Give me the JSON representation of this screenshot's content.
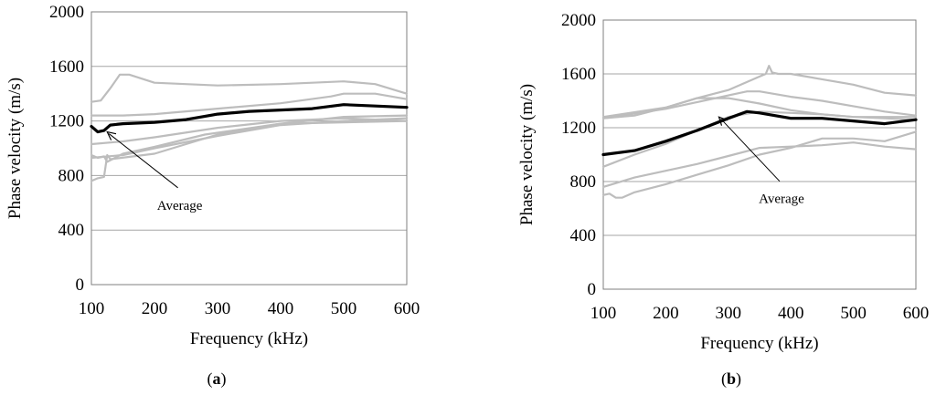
{
  "chart_data": [
    {
      "type": "line",
      "panel_label": "(a)",
      "panel_letter": "a",
      "xlabel": "Frequency (kHz)",
      "ylabel": "Phase velocity (m/s)",
      "xlim": [
        100,
        600
      ],
      "ylim": [
        0,
        2000
      ],
      "xticks": [
        100,
        200,
        300,
        400,
        500,
        600
      ],
      "yticks": [
        0,
        400,
        800,
        1200,
        1600,
        2000
      ],
      "grid": "horizontal",
      "annotation": {
        "text": "Average",
        "arrow_to": [
          125,
          1120
        ],
        "text_at": [
          240,
          590
        ]
      },
      "average_color": "#000000",
      "series_color": "#bdbdbd",
      "series": [
        {
          "x": [
            100,
            115,
            130,
            145,
            160,
            200,
            300,
            400,
            450,
            500,
            550,
            600
          ],
          "y": [
            1340,
            1350,
            1440,
            1540,
            1540,
            1480,
            1460,
            1470,
            1480,
            1490,
            1470,
            1400
          ]
        },
        {
          "x": [
            100,
            150,
            200,
            300,
            400,
            480,
            500,
            550,
            600
          ],
          "y": [
            1240,
            1240,
            1250,
            1290,
            1330,
            1380,
            1400,
            1400,
            1360
          ]
        },
        {
          "x": [
            100,
            150,
            200,
            300,
            400,
            500,
            600
          ],
          "y": [
            1030,
            1050,
            1080,
            1150,
            1200,
            1220,
            1200
          ]
        },
        {
          "x": [
            100,
            110,
            120,
            125,
            150,
            200,
            280,
            400,
            500,
            600
          ],
          "y": [
            950,
            930,
            940,
            900,
            960,
            1010,
            1100,
            1180,
            1230,
            1240
          ]
        },
        {
          "x": [
            100,
            110,
            120,
            125,
            130,
            200,
            300,
            400,
            500,
            600
          ],
          "y": [
            760,
            780,
            790,
            950,
            920,
            960,
            1100,
            1180,
            1190,
            1200
          ]
        },
        {
          "x": [
            100,
            150,
            200,
            300,
            400,
            500,
            600
          ],
          "y": [
            930,
            950,
            1000,
            1090,
            1170,
            1200,
            1220
          ]
        },
        {
          "name": "Average",
          "x": [
            100,
            110,
            120,
            130,
            150,
            200,
            250,
            300,
            350,
            400,
            450,
            500,
            550,
            600
          ],
          "y": [
            1160,
            1120,
            1130,
            1170,
            1180,
            1190,
            1210,
            1250,
            1270,
            1280,
            1290,
            1320,
            1310,
            1300
          ]
        }
      ]
    },
    {
      "type": "line",
      "panel_label": "(b)",
      "panel_letter": "b",
      "xlabel": "Frequency (kHz)",
      "ylabel": "Phase velocity (m/s)",
      "xlim": [
        100,
        600
      ],
      "ylim": [
        0,
        2000
      ],
      "xticks": [
        100,
        200,
        300,
        400,
        500,
        600
      ],
      "yticks": [
        0,
        400,
        800,
        1200,
        1600,
        2000
      ],
      "grid": "horizontal",
      "annotation": {
        "text": "Average",
        "arrow_to": [
          285,
          1280
        ],
        "text_at": [
          385,
          680
        ]
      },
      "average_color": "#000000",
      "series_color": "#bdbdbd",
      "series": [
        {
          "x": [
            100,
            150,
            200,
            250,
            300,
            350,
            360,
            365,
            370,
            380,
            400,
            450,
            500,
            550,
            600
          ],
          "y": [
            1270,
            1290,
            1350,
            1420,
            1480,
            1580,
            1600,
            1660,
            1610,
            1600,
            1600,
            1560,
            1520,
            1460,
            1440
          ]
        },
        {
          "x": [
            100,
            200,
            300,
            330,
            350,
            400,
            450,
            500,
            550,
            600
          ],
          "y": [
            1270,
            1340,
            1440,
            1470,
            1470,
            1430,
            1400,
            1360,
            1320,
            1290
          ]
        },
        {
          "x": [
            100,
            200,
            250,
            300,
            350,
            400,
            450,
            500,
            550,
            600
          ],
          "y": [
            1280,
            1350,
            1420,
            1420,
            1380,
            1330,
            1300,
            1280,
            1270,
            1260
          ]
        },
        {
          "x": [
            100,
            150,
            200,
            250,
            300,
            350,
            400,
            450,
            500,
            550,
            600
          ],
          "y": [
            910,
            1000,
            1080,
            1180,
            1280,
            1320,
            1310,
            1300,
            1280,
            1280,
            1280
          ]
        },
        {
          "x": [
            100,
            150,
            200,
            250,
            300,
            350,
            400,
            450,
            500,
            550,
            600
          ],
          "y": [
            760,
            830,
            880,
            930,
            990,
            1050,
            1060,
            1070,
            1090,
            1060,
            1040
          ]
        },
        {
          "x": [
            100,
            110,
            120,
            130,
            150,
            200,
            250,
            300,
            350,
            400,
            450,
            500,
            550,
            600
          ],
          "y": [
            700,
            710,
            680,
            680,
            720,
            780,
            850,
            920,
            1000,
            1050,
            1120,
            1120,
            1100,
            1170
          ]
        },
        {
          "name": "Average",
          "x": [
            100,
            150,
            200,
            250,
            300,
            330,
            350,
            400,
            450,
            500,
            550,
            600
          ],
          "y": [
            1000,
            1030,
            1100,
            1180,
            1270,
            1320,
            1310,
            1270,
            1270,
            1250,
            1230,
            1260
          ]
        }
      ]
    }
  ]
}
